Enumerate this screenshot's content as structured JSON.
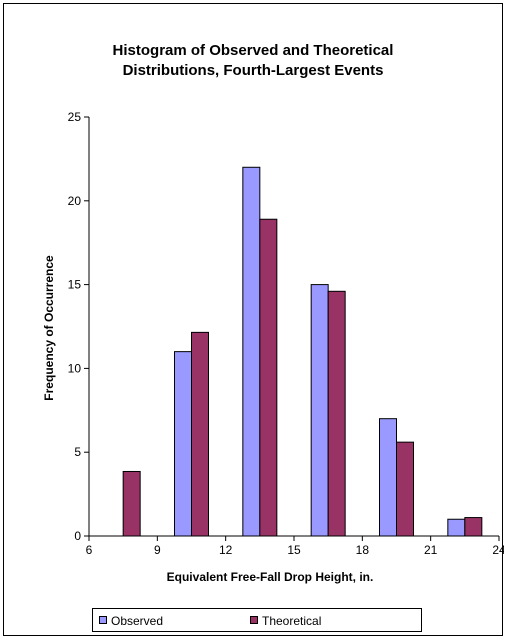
{
  "chart_data": {
    "type": "bar",
    "title": "Histogram of Observed and Theoretical\nDistributions, Fourth-Largest Events",
    "xlabel": "Equivalent Free-Fall Drop Height, in.",
    "ylabel": "Frequency of Occurrence",
    "xlim": [
      6,
      24
    ],
    "ylim": [
      0,
      25
    ],
    "x_ticks": [
      6,
      9,
      12,
      15,
      18,
      21,
      24
    ],
    "y_ticks": [
      0,
      5,
      10,
      15,
      20,
      25
    ],
    "bins": [
      7.5,
      10.5,
      13.5,
      16.5,
      19.5,
      22.5
    ],
    "series": [
      {
        "name": "Observed",
        "color": "#9999FF",
        "values": [
          0,
          11,
          22,
          15,
          7,
          1
        ]
      },
      {
        "name": "Theoretical",
        "color": "#993366",
        "values": [
          3.85,
          12.15,
          18.9,
          14.6,
          5.6,
          1.1
        ]
      }
    ],
    "legend_position": "bottom",
    "grid": false
  }
}
